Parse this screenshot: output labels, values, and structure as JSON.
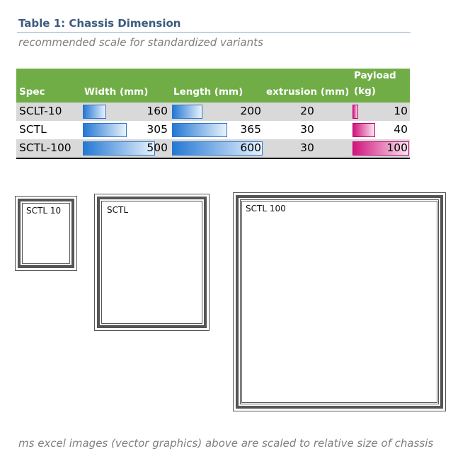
{
  "title": "Table 1: Chassis Dimension",
  "subtitle": "recommended scale for standardized variants",
  "table": {
    "headers": {
      "spec": "Spec",
      "width": "Width (mm)",
      "length": "Length (mm)",
      "extrusion": "extrusion (mm)",
      "payload": "Payload (kg)"
    },
    "rows": [
      {
        "spec": "SCLT-10",
        "width": "160",
        "length": "200",
        "extrusion": "20",
        "payload": "10"
      },
      {
        "spec": "SCTL",
        "width": "305",
        "length": "365",
        "extrusion": "30",
        "payload": "40"
      },
      {
        "spec": "SCTL-100",
        "width": "500",
        "length": "600",
        "extrusion": "30",
        "payload": "100"
      }
    ],
    "bar_scale": {
      "width_max": 500,
      "length_max": 600,
      "payload_max": 100
    },
    "colors": {
      "header_bg": "#70ad47",
      "alt_row_bg": "#d9d9d9",
      "blue_bar": "#2478d4",
      "pink_bar": "#d0147e"
    }
  },
  "frames": [
    {
      "label": "SCTL 10"
    },
    {
      "label": "SCTL"
    },
    {
      "label": "SCTL 100"
    }
  ],
  "footer": "ms excel images (vector graphics) above are scaled to relative size of chassis"
}
